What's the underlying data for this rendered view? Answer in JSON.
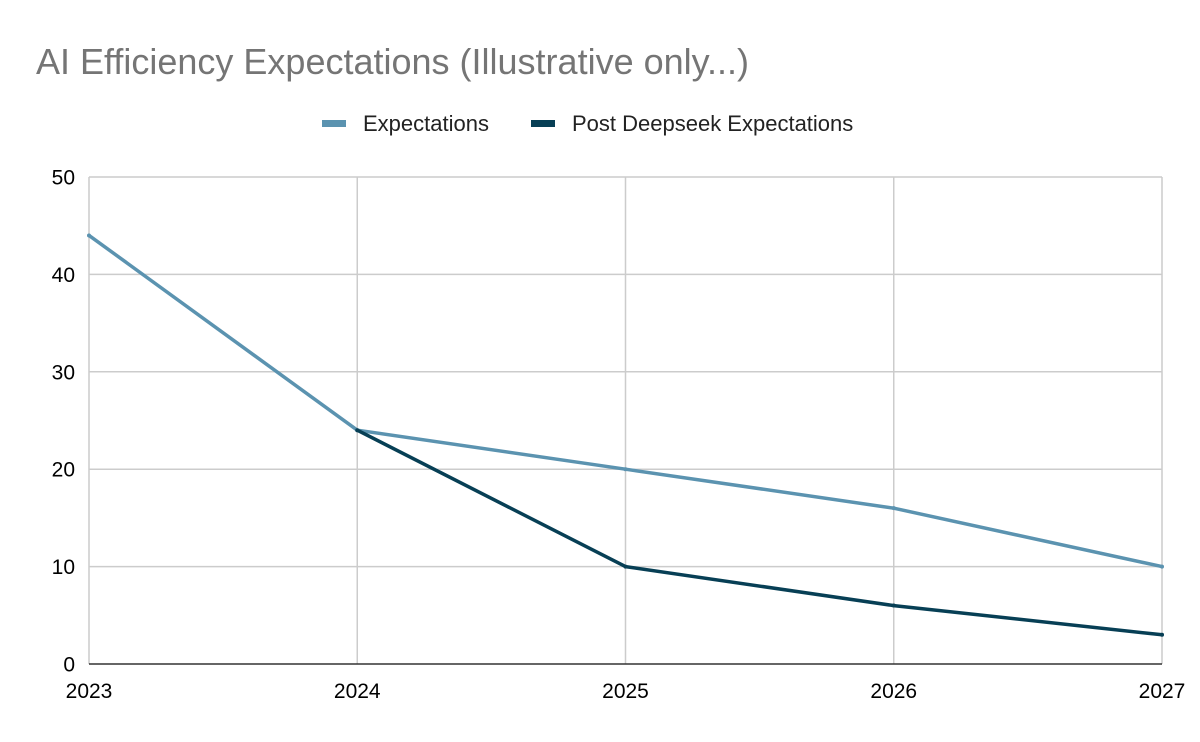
{
  "chart_data": {
    "type": "line",
    "title": "AI Efficiency Expectations (Illustrative only...)",
    "x": [
      "2023",
      "2024",
      "2025",
      "2026",
      "2027"
    ],
    "ylim": [
      0,
      50
    ],
    "yticks": [
      "0",
      "10",
      "20",
      "30",
      "40",
      "50"
    ],
    "grid": true,
    "legend_position": "top",
    "series": [
      {
        "name": "Expectations",
        "color": "#5b93b0",
        "values": [
          44,
          24,
          20,
          16,
          10
        ]
      },
      {
        "name": "Post Deepseek Expectations",
        "color": "#073f55",
        "values": [
          null,
          24,
          10,
          6,
          3
        ]
      }
    ]
  }
}
